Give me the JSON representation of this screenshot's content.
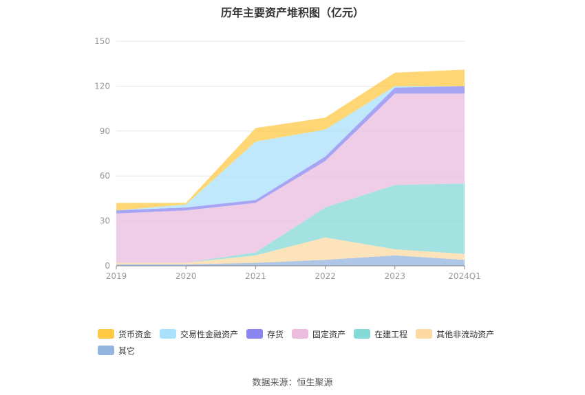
{
  "chart_data": {
    "type": "area",
    "stacked": true,
    "title": "历年主要资产堆积图（亿元）",
    "categories": [
      "2019",
      "2020",
      "2021",
      "2022",
      "2023",
      "2024Q1"
    ],
    "ylim": [
      0,
      150
    ],
    "yticks": [
      0,
      30,
      60,
      90,
      120,
      150
    ],
    "grid": true,
    "legend_position": "bottom",
    "series": [
      {
        "name": "其它",
        "color": "#93b4de",
        "values": [
          1,
          1,
          2,
          4,
          7,
          4
        ]
      },
      {
        "name": "其他非流动资产",
        "color": "#fcd9a1",
        "values": [
          1,
          1,
          5,
          15,
          4,
          4
        ]
      },
      {
        "name": "在建工程",
        "color": "#84d8d6",
        "values": [
          0,
          0,
          2,
          20,
          43,
          47
        ]
      },
      {
        "name": "固定资产",
        "color": "#ebbcdd",
        "values": [
          33,
          35,
          33,
          31,
          61,
          60
        ]
      },
      {
        "name": "存货",
        "color": "#8a86f0",
        "values": [
          2,
          2,
          2,
          3,
          4,
          5
        ]
      },
      {
        "name": "交易性金融资产",
        "color": "#a9e0fb",
        "values": [
          0,
          2,
          39,
          18,
          1,
          0
        ]
      },
      {
        "name": "货币资金",
        "color": "#fdc844",
        "values": [
          5,
          1,
          9,
          8,
          9,
          11
        ]
      }
    ],
    "legend_order": [
      "货币资金",
      "交易性金融资产",
      "存货",
      "固定资产",
      "在建工程",
      "其他非流动资产",
      "其它"
    ]
  },
  "footer": {
    "source": "数据来源：恒生聚源"
  }
}
